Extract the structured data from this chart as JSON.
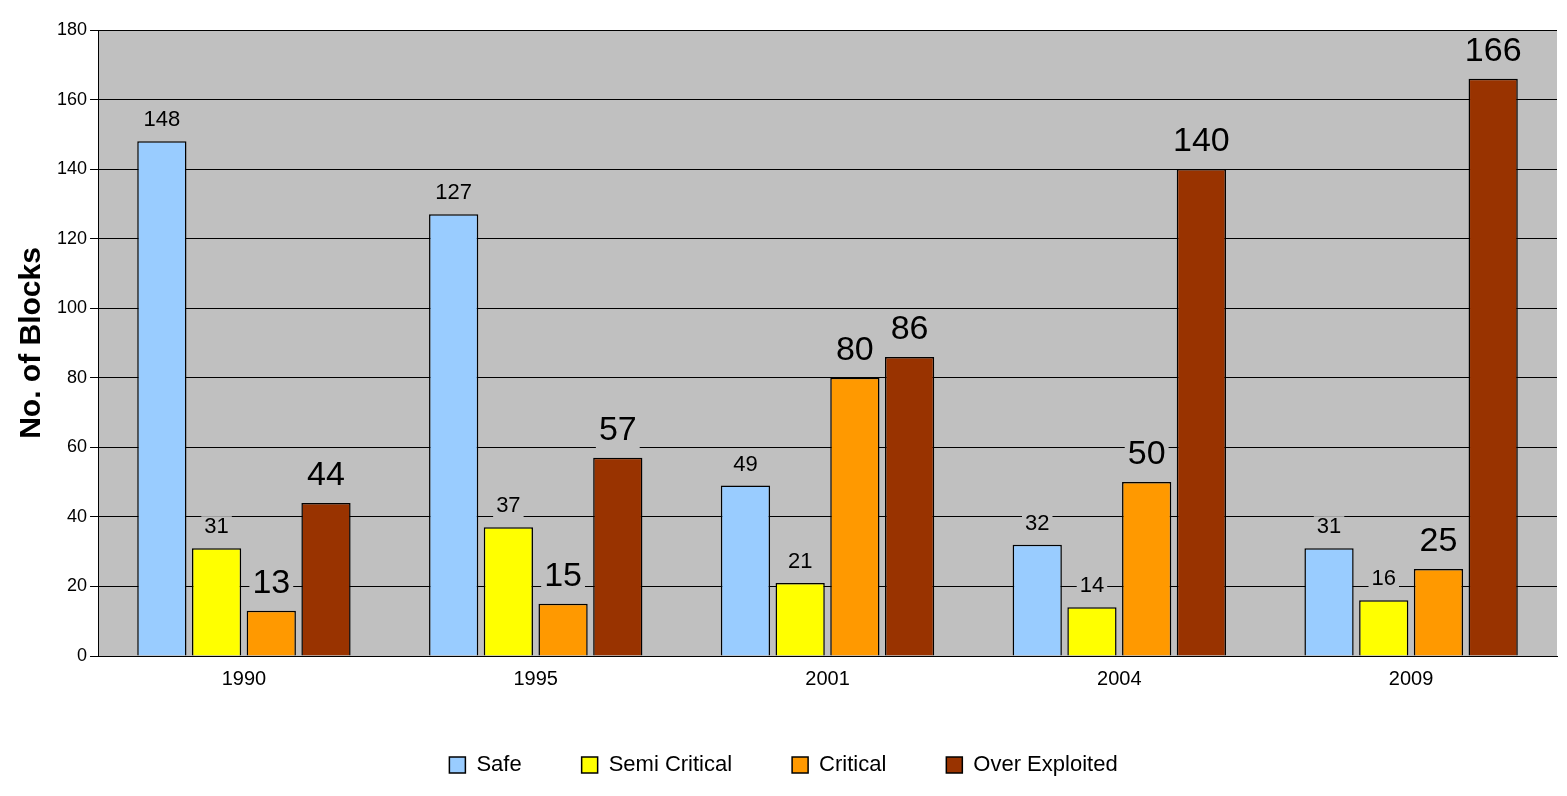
{
  "chart_data": {
    "type": "bar",
    "ylabel": "No. of Blocks",
    "categories": [
      "1990",
      "1995",
      "2001",
      "2004",
      "2009"
    ],
    "series": [
      {
        "name": "Safe",
        "color": "#99ccff",
        "values": [
          148,
          127,
          49,
          32,
          31
        ]
      },
      {
        "name": "Semi Critical",
        "color": "#ffff00",
        "values": [
          31,
          37,
          21,
          14,
          16
        ]
      },
      {
        "name": "Critical",
        "color": "#ff9900",
        "values": [
          13,
          15,
          80,
          50,
          25
        ]
      },
      {
        "name": "Over Exploited",
        "color": "#993300",
        "values": [
          44,
          57,
          86,
          140,
          166
        ]
      }
    ],
    "ylim": [
      0,
      180
    ],
    "yticks": [
      0,
      20,
      40,
      60,
      80,
      100,
      120,
      140,
      160,
      180
    ],
    "grid": "y",
    "legend": "bottom",
    "data_labels": true
  }
}
